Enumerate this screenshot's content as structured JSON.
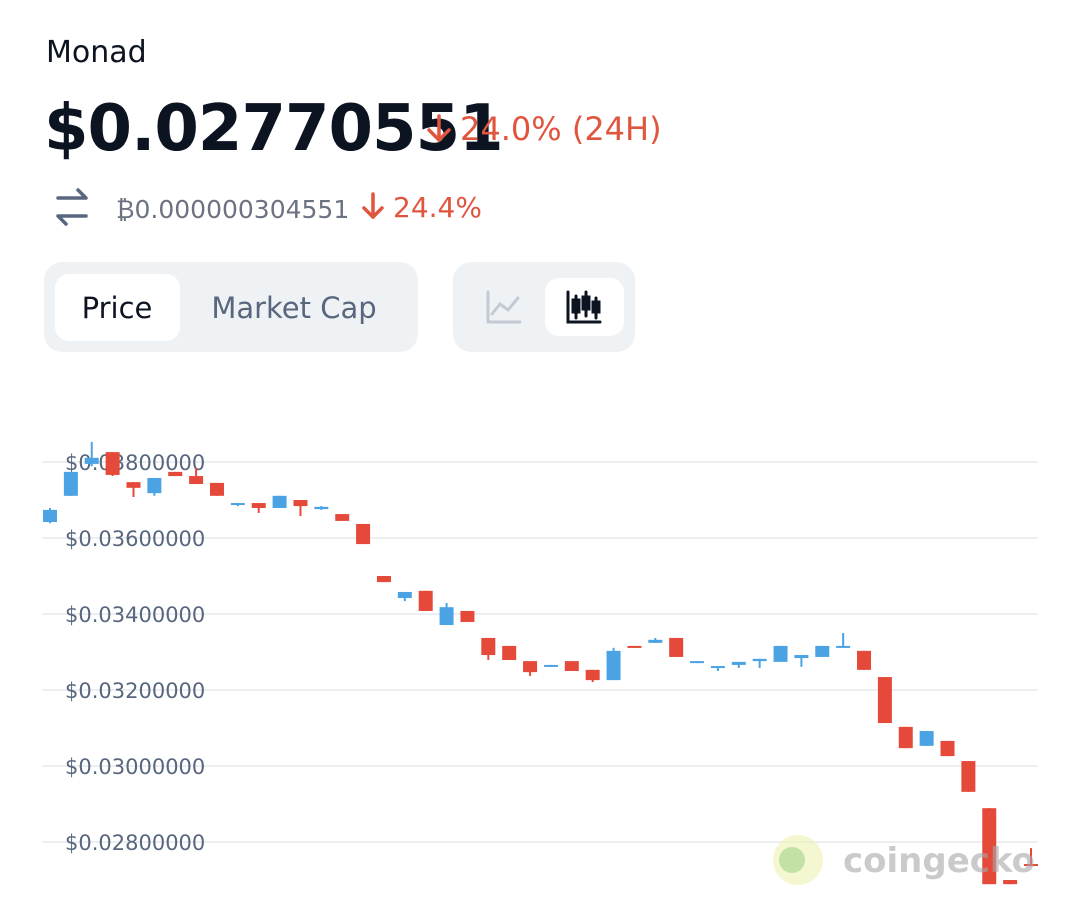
{
  "header": {
    "name": "Monad",
    "price": "$0.02770551",
    "change_24h": "24.0% (24H)"
  },
  "btc": {
    "price": "₿0.000000304551",
    "change": "24.4%"
  },
  "tabs": [
    "Price",
    "Market Cap"
  ],
  "watermark": "coingecko",
  "chart_data": {
    "type": "candlestick",
    "up_color": "#4ba3e3",
    "down_color": "#e5493a",
    "grid": true,
    "ylim": [
      0.02685,
      0.0386
    ],
    "yticks": [
      {
        "value": 0.038,
        "label": "$0.03800000"
      },
      {
        "value": 0.036,
        "label": "$0.03600000"
      },
      {
        "value": 0.034,
        "label": "$0.03400000"
      },
      {
        "value": 0.032,
        "label": "$0.03200000"
      },
      {
        "value": 0.03,
        "label": "$0.03000000"
      },
      {
        "value": 0.028,
        "label": "$0.02800000"
      }
    ],
    "open": [
      0.03642,
      0.03711,
      0.03795,
      0.03826,
      0.03747,
      0.03718,
      0.03774,
      0.03763,
      0.03745,
      0.03687,
      0.03692,
      0.03679,
      0.037,
      0.03676,
      0.03663,
      0.03637,
      0.035,
      0.03442,
      0.03461,
      0.03371,
      0.03408,
      0.03337,
      0.03316,
      0.03276,
      0.03261,
      0.03276,
      0.03253,
      0.03226,
      0.03316,
      0.03324,
      0.03337,
      0.03271,
      0.03261,
      0.03266,
      0.03276,
      0.03274,
      0.03284,
      0.03287,
      0.03311,
      0.03303,
      0.03234,
      0.03103,
      0.03053,
      0.03066,
      0.03013,
      0.02889,
      0.027,
      0.02742
    ],
    "high": [
      0.03679,
      0.03774,
      0.03853,
      0.03826,
      0.03747,
      0.03758,
      0.03774,
      0.03784,
      0.03745,
      0.03692,
      0.03692,
      0.03711,
      0.037,
      0.03684,
      0.03663,
      0.03637,
      0.035,
      0.03458,
      0.03461,
      0.03429,
      0.03408,
      0.03337,
      0.03316,
      0.03276,
      0.03266,
      0.03276,
      0.03253,
      0.03311,
      0.03316,
      0.03337,
      0.03337,
      0.03276,
      0.03263,
      0.03274,
      0.03282,
      0.03316,
      0.03292,
      0.03316,
      0.0335,
      0.03303,
      0.03234,
      0.03103,
      0.03092,
      0.03066,
      0.03013,
      0.02889,
      0.027,
      0.02784
    ],
    "low": [
      0.03639,
      0.03711,
      0.03789,
      0.03763,
      0.03708,
      0.03711,
      0.03763,
      0.03742,
      0.03711,
      0.03684,
      0.03666,
      0.03679,
      0.03658,
      0.03674,
      0.03645,
      0.03584,
      0.03484,
      0.03434,
      0.03408,
      0.03371,
      0.03379,
      0.03279,
      0.03279,
      0.03237,
      0.03261,
      0.0325,
      0.03221,
      0.03226,
      0.03311,
      0.03324,
      0.03287,
      0.03271,
      0.0325,
      0.03258,
      0.03258,
      0.03274,
      0.03261,
      0.03287,
      0.03311,
      0.03253,
      0.03113,
      0.03047,
      0.03053,
      0.03026,
      0.02932,
      0.02689,
      0.02689,
      0.02739
    ],
    "close": [
      0.03674,
      0.03774,
      0.03811,
      0.03766,
      0.03732,
      0.03758,
      0.03763,
      0.03742,
      0.03711,
      0.03692,
      0.03679,
      0.03711,
      0.03684,
      0.03682,
      0.03645,
      0.03584,
      0.03484,
      0.03458,
      0.03408,
      0.03418,
      0.03379,
      0.03292,
      0.03279,
      0.03247,
      0.03266,
      0.0325,
      0.03226,
      0.03303,
      0.03311,
      0.03332,
      0.03287,
      0.03276,
      0.03263,
      0.03274,
      0.03282,
      0.03316,
      0.03292,
      0.03316,
      0.03316,
      0.03253,
      0.03113,
      0.03047,
      0.03092,
      0.03026,
      0.02932,
      0.02689,
      0.02689,
      0.02739
    ]
  }
}
